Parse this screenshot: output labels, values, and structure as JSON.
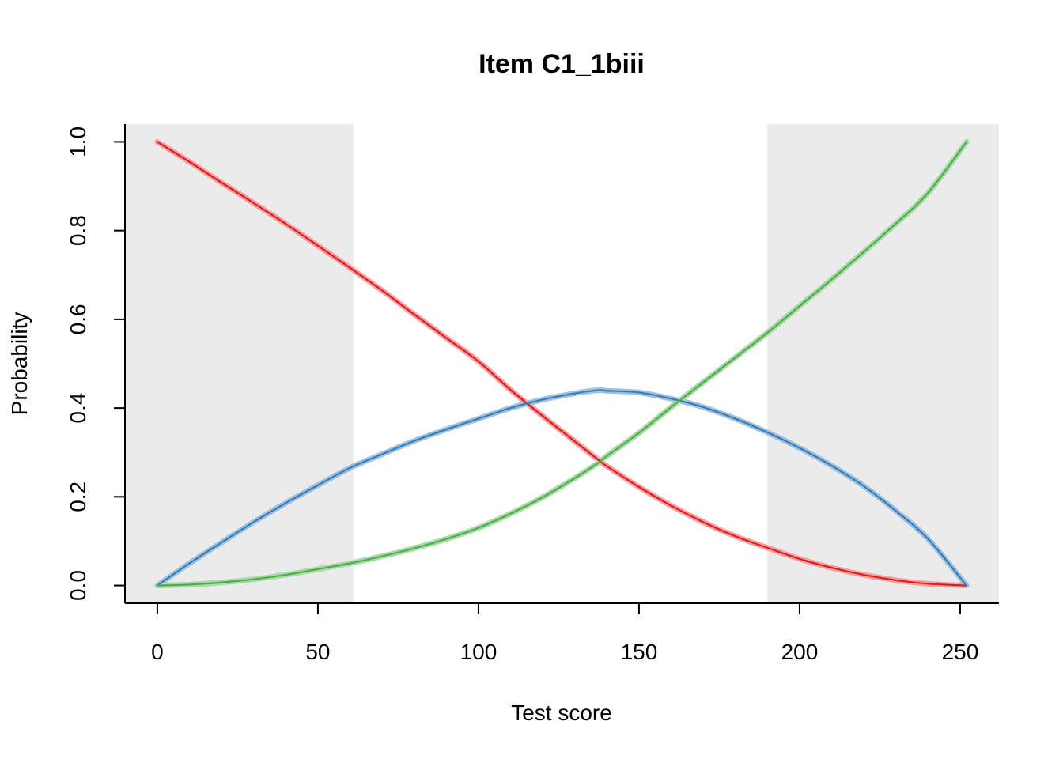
{
  "chart_data": {
    "type": "line",
    "title": "Item C1_1biii",
    "xlabel": "Test score",
    "ylabel": "Probability",
    "xlim": [
      -10.08,
      262.08
    ],
    "ylim": [
      -0.04,
      1.04
    ],
    "xticks": [
      0,
      50,
      100,
      150,
      200,
      250
    ],
    "yticks": [
      0.0,
      0.2,
      0.4,
      0.6,
      0.8,
      1.0
    ],
    "xtick_labels": [
      "0",
      "50",
      "100",
      "150",
      "200",
      "250"
    ],
    "ytick_labels": [
      "0.0",
      "0.2",
      "0.4",
      "0.6",
      "0.8",
      "1.0"
    ],
    "grid": false,
    "shaded_regions": [
      {
        "x_start": -10.08,
        "x_end": 61,
        "color": "#ebebeb"
      },
      {
        "x_start": 190,
        "x_end": 262.08,
        "color": "#ebebeb"
      }
    ],
    "x": [
      0,
      10,
      20,
      30,
      40,
      50,
      60,
      70,
      80,
      90,
      100,
      110,
      120,
      130,
      137,
      140,
      150,
      160,
      170,
      180,
      190,
      200,
      210,
      220,
      230,
      240,
      252
    ],
    "series": [
      {
        "color": "#e41a1c",
        "band_color": "#f4a0a2",
        "values": [
          1.0,
          0.955,
          0.908,
          0.862,
          0.815,
          0.766,
          0.716,
          0.665,
          0.611,
          0.558,
          0.505,
          0.441,
          0.382,
          0.325,
          0.285,
          0.269,
          0.222,
          0.18,
          0.143,
          0.111,
          0.085,
          0.06,
          0.04,
          0.024,
          0.012,
          0.004,
          0.0
        ]
      },
      {
        "color": "#377eb8",
        "band_color": "#9fc1e0",
        "values": [
          0.0,
          0.05,
          0.097,
          0.143,
          0.186,
          0.226,
          0.265,
          0.296,
          0.326,
          0.352,
          0.376,
          0.4,
          0.419,
          0.433,
          0.44,
          0.439,
          0.435,
          0.421,
          0.402,
          0.376,
          0.345,
          0.31,
          0.27,
          0.224,
          0.168,
          0.105,
          0.0
        ]
      },
      {
        "color": "#4daf4a",
        "band_color": "#a8d9a6",
        "values": [
          0.0,
          0.002,
          0.007,
          0.014,
          0.024,
          0.037,
          0.05,
          0.066,
          0.084,
          0.105,
          0.13,
          0.162,
          0.199,
          0.242,
          0.275,
          0.292,
          0.344,
          0.402,
          0.458,
          0.514,
          0.57,
          0.63,
          0.69,
          0.752,
          0.816,
          0.885,
          1.0
        ]
      }
    ]
  }
}
